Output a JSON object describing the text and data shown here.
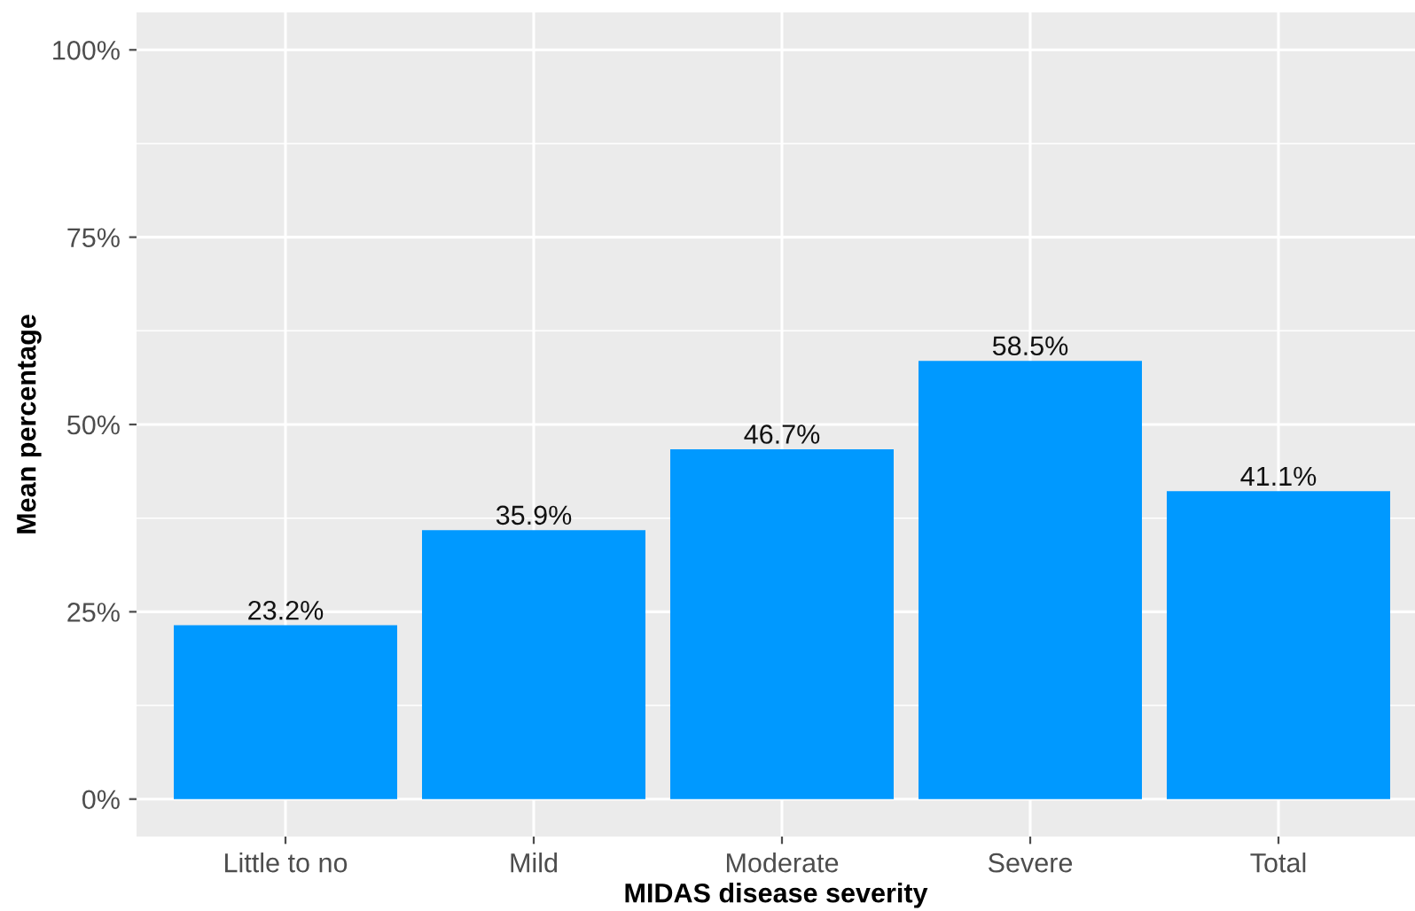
{
  "chart_data": {
    "type": "bar",
    "xlabel": "MIDAS disease severity",
    "ylabel": "Mean percentage",
    "categories": [
      "Little to no",
      "Mild",
      "Moderate",
      "Severe",
      "Total"
    ],
    "values": [
      23.2,
      35.9,
      46.7,
      58.5,
      41.1
    ],
    "value_labels": [
      "23.2%",
      "35.9%",
      "46.7%",
      "58.5%",
      "41.1%"
    ],
    "color": "#0099ff",
    "ylim": [
      -5,
      105
    ],
    "yticks": [
      {
        "value": 0,
        "label": "0%"
      },
      {
        "value": 25,
        "label": "25%"
      },
      {
        "value": 50,
        "label": "50%"
      },
      {
        "value": 75,
        "label": "75%"
      },
      {
        "value": 100,
        "label": "100%"
      }
    ],
    "grid": true
  }
}
